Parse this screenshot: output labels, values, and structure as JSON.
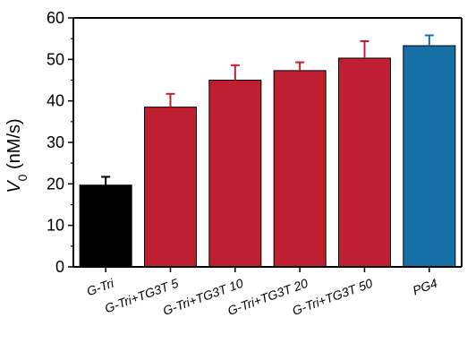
{
  "chart_data": {
    "type": "bar",
    "title": "",
    "xlabel": "",
    "ylabel": {
      "symbol": "V",
      "subscript": "0",
      "unit": " (nM/s)"
    },
    "ylim": [
      0,
      60
    ],
    "yticks": [
      0,
      10,
      20,
      30,
      40,
      50,
      60
    ],
    "grid": false,
    "categories": [
      "G-Tri",
      "G-Tri+TG3T 5",
      "G-Tri+TG3T 10",
      "G-Tri+TG3T 20",
      "G-Tri+TG3T 50",
      "PG4"
    ],
    "values": [
      19.7,
      38.5,
      45.0,
      47.3,
      50.3,
      53.3
    ],
    "errors": [
      2.0,
      3.2,
      3.6,
      2.0,
      4.1,
      2.5
    ],
    "colors": [
      "#000000",
      "#be2032",
      "#be2032",
      "#be2032",
      "#be2032",
      "#1670a6"
    ]
  }
}
